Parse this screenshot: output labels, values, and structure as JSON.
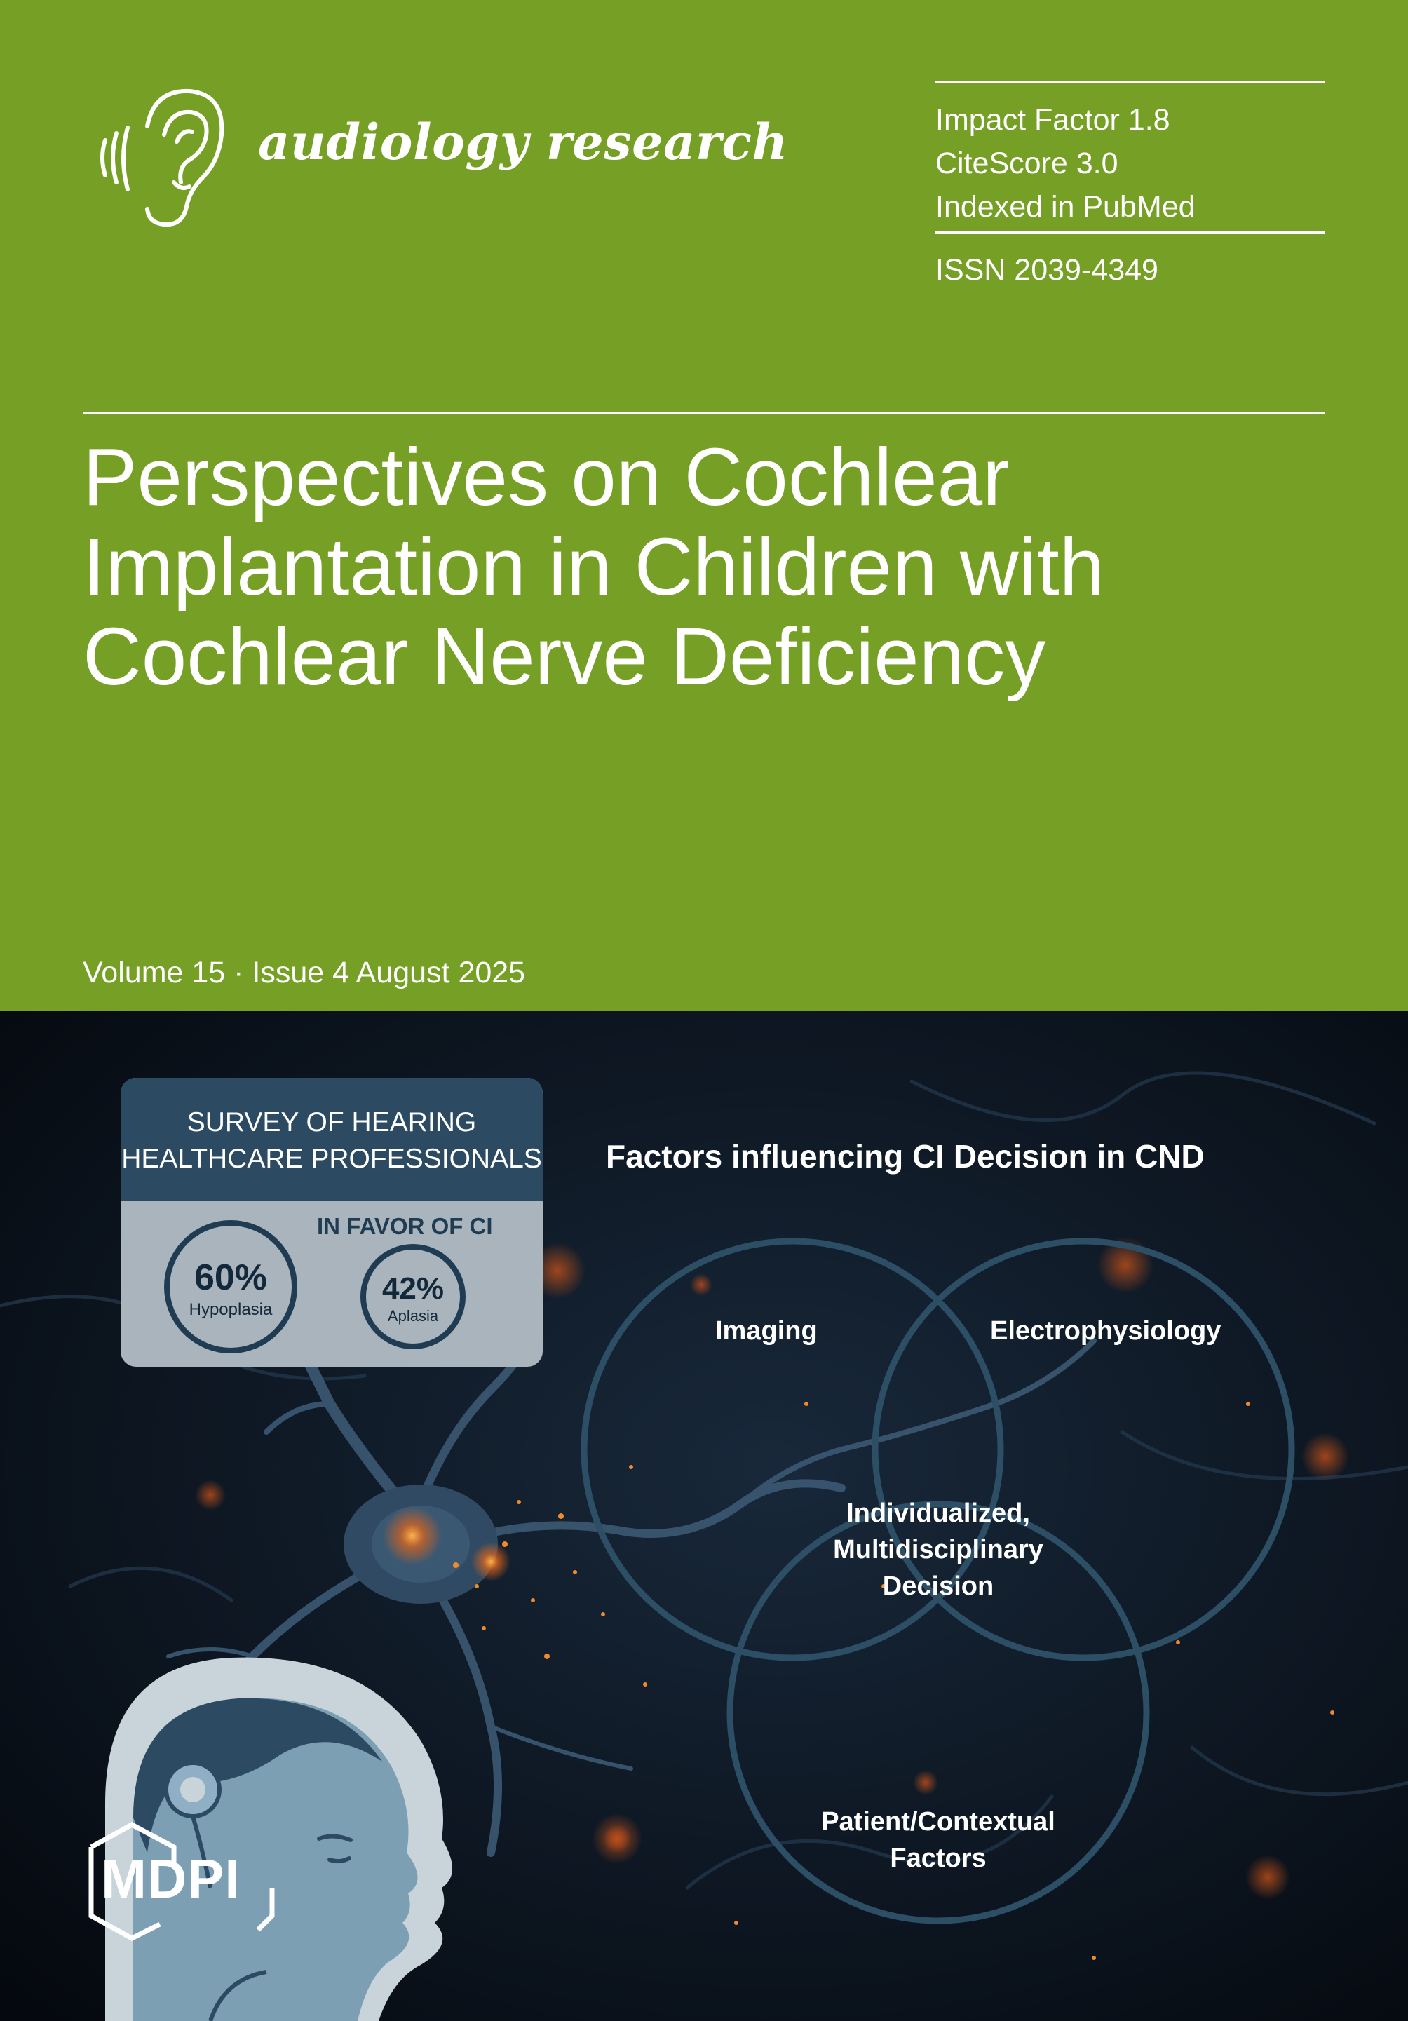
{
  "journal": {
    "name": "audiology research",
    "logo_icon": "ear-icon"
  },
  "metrics": {
    "impact_factor": "Impact Factor 1.8",
    "citescore": "CiteScore 3.0",
    "indexed": "Indexed in PubMed",
    "issn": "ISSN 2039-4349"
  },
  "article": {
    "title_lines": [
      "Perspectives on Cochlear",
      "Implantation in Children with",
      "Cochlear Nerve Deficiency"
    ]
  },
  "issue": {
    "text": "Volume 15 · Issue 4 August 2025"
  },
  "graphic": {
    "survey_title_lines": [
      "SURVEY OF HEARING",
      "HEALTHCARE PROFESSIONALS"
    ],
    "favor_label": "IN FAVOR OF CI",
    "stat1": {
      "value": "60%",
      "label": "Hypoplasia"
    },
    "stat2": {
      "value": "42%",
      "label": "Aplasia"
    },
    "factors_title": "Factors influencing CI Decision in CND",
    "venn_labels": {
      "imaging": "Imaging",
      "electro": "Electrophysiology",
      "center_lines": [
        "Individualized,",
        "Multidisciplinary",
        "Decision"
      ],
      "patient_lines": [
        "Patient/Contextual",
        "Factors"
      ]
    }
  },
  "publisher": {
    "logo": "MDPI"
  },
  "colors": {
    "header_green": "#76a025",
    "dark_bg": "#070c16",
    "survey_header": "#2c4b62",
    "venn_ring": "#2d4f66"
  }
}
